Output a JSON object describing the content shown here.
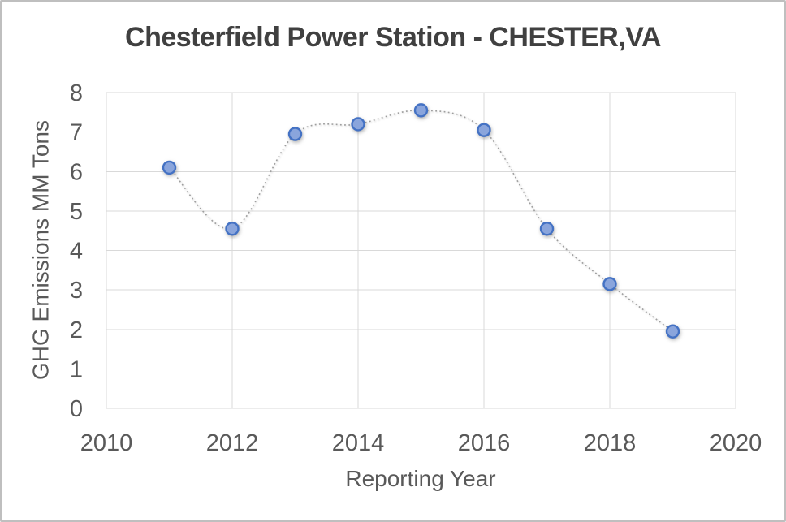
{
  "chart_data": {
    "type": "scatter",
    "title": "Chesterfield Power Station - CHESTER,VA",
    "xlabel": "Reporting Year",
    "ylabel": "GHG Emissions MM Tons",
    "x": [
      2011,
      2012,
      2013,
      2014,
      2015,
      2016,
      2017,
      2018,
      2019
    ],
    "values": [
      6.1,
      4.55,
      6.95,
      7.2,
      7.55,
      7.05,
      4.55,
      3.15,
      1.95
    ],
    "xlim": [
      2010,
      2020
    ],
    "ylim": [
      0,
      8
    ],
    "x_ticks": [
      2010,
      2012,
      2014,
      2016,
      2018,
      2020
    ],
    "y_ticks": [
      0,
      1,
      2,
      3,
      4,
      5,
      6,
      7,
      8
    ],
    "grid": true,
    "legend": false,
    "line_style": "dotted-smooth",
    "marker": "circle",
    "colors": {
      "marker_fill": "#8AA5DC",
      "marker_border": "#4472C4",
      "line": "#9E9E9E",
      "gridline": "#D9D9D9",
      "tick_label": "#595959",
      "axis_title": "#595959",
      "title": "#404040",
      "chart_border": "#BFBFBF",
      "background": "#FFFFFF"
    }
  }
}
